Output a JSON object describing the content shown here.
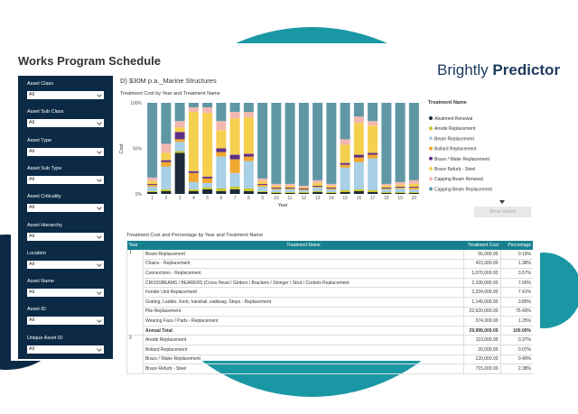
{
  "header": {
    "title": "Works Program Schedule",
    "logo_brand": "Brightly",
    "logo_product": "Predictor"
  },
  "filters": [
    {
      "label": "Asset Class",
      "value": "All"
    },
    {
      "label": "Asset Sub Class",
      "value": "All"
    },
    {
      "label": "Asset Type",
      "value": "All"
    },
    {
      "label": "Asset Sub Type",
      "value": "All"
    },
    {
      "label": "Asset Criticality",
      "value": "All"
    },
    {
      "label": "Asset Hierarchy",
      "value": "All"
    },
    {
      "label": "Location",
      "value": "All"
    },
    {
      "label": "Asset Name",
      "value": "All"
    },
    {
      "label": "Asset ID",
      "value": "All"
    },
    {
      "label": "Unique Asset ID",
      "value": "All"
    }
  ],
  "report": {
    "heading": "D) $30M p.a._Marine Structures",
    "button": "Show Details"
  },
  "chart_data": {
    "type": "bar",
    "stacked": true,
    "title": "Treatment Cost by Year and Treatment Name",
    "x_label": "Year",
    "y_label": "Cost",
    "legend_title": "Treatment Name",
    "legend": "right",
    "grid": false,
    "categories": [
      "1",
      "2",
      "3",
      "4",
      "5",
      "6",
      "7",
      "8",
      "9",
      "10",
      "11",
      "12",
      "13",
      "14",
      "15",
      "16",
      "17",
      "18",
      "19",
      "20"
    ],
    "ylim": [
      0,
      100
    ],
    "yticks": [
      {
        "value": 0,
        "label": "0%"
      },
      {
        "value": 50,
        "label": "50%"
      },
      {
        "value": 100,
        "label": "100%"
      }
    ],
    "series": [
      {
        "name": "Abutment Renewal",
        "color": "#1c2b39",
        "values": [
          2,
          3,
          45,
          3,
          5,
          3,
          5,
          3,
          2,
          1,
          1,
          1,
          2,
          1,
          2,
          3,
          2,
          1,
          1,
          1
        ]
      },
      {
        "name": "Anode Replacement",
        "color": "#c9c52a",
        "values": [
          1,
          2,
          2,
          2,
          2,
          3,
          3,
          3,
          1,
          1,
          1,
          1,
          1,
          1,
          2,
          2,
          2,
          1,
          1,
          1
        ]
      },
      {
        "name": "Beam Replacement",
        "color": "#a8d0e6",
        "values": [
          5,
          25,
          10,
          8,
          5,
          35,
          15,
          30,
          5,
          3,
          3,
          2,
          4,
          3,
          25,
          30,
          35,
          3,
          4,
          3
        ]
      },
      {
        "name": "Bollard Replacement",
        "color": "#f0a830",
        "values": [
          2,
          5,
          3,
          10,
          5,
          5,
          15,
          5,
          2,
          1,
          1,
          1,
          1,
          1,
          3,
          5,
          4,
          1,
          1,
          2
        ]
      },
      {
        "name": "Brace / Waler Replacement",
        "color": "#5e2f86",
        "values": [
          1,
          2,
          8,
          2,
          2,
          4,
          5,
          3,
          1,
          1,
          1,
          1,
          1,
          1,
          2,
          3,
          2,
          1,
          1,
          1
        ]
      },
      {
        "name": "Brace Refurb - Steel",
        "color": "#f5d04f",
        "values": [
          3,
          8,
          5,
          65,
          70,
          20,
          40,
          40,
          3,
          2,
          2,
          1,
          3,
          2,
          20,
          35,
          30,
          2,
          2,
          3
        ]
      },
      {
        "name": "Capping Beam Renewal",
        "color": "#f2b8b0",
        "values": [
          4,
          10,
          7,
          5,
          6,
          10,
          7,
          6,
          3,
          2,
          2,
          2,
          3,
          2,
          6,
          7,
          5,
          2,
          3,
          4
        ]
      },
      {
        "name": "Capping Beam Replacement",
        "color": "#5f97a5",
        "values": [
          82,
          45,
          20,
          5,
          5,
          20,
          10,
          10,
          83,
          89,
          89,
          91,
          85,
          89,
          40,
          15,
          20,
          89,
          87,
          85
        ]
      }
    ]
  },
  "table": {
    "title": "Treatment Cost and Percentage by Year and Treatment Name",
    "columns": [
      "Year",
      "Treatment Name",
      "Treatment Cost",
      "Percentage"
    ],
    "groups": [
      {
        "year": "1",
        "rows": [
          [
            "Beam Replacement",
            "56,000.00",
            "0.19%"
          ],
          [
            "Chains - Replacement",
            "415,000.00",
            "1.38%"
          ],
          [
            "Connections - Replacement",
            "1,070,000.00",
            "3.57%"
          ],
          [
            "CROSSBEAMS / BEARERS (Cross Head / Girders / Brackets / Stringer / Strut / Corbels Replacement",
            "2,100,000.00",
            "7.00%"
          ],
          [
            "Fender Unit Replacement",
            "2,224,000.00",
            "7.41%"
          ],
          [
            "Grating, Ladder, Kerb, handrail, walkway, Steps - Replacement",
            "1,140,000.00",
            "3.80%"
          ],
          [
            "Pile Replacement",
            "22,620,000.00",
            "75.40%"
          ],
          [
            "Wearing Face / Pads - Replacement",
            "374,000.00",
            "1.25%"
          ]
        ],
        "total": [
          "Annual Total",
          "29,999,000.00",
          "100.00%"
        ]
      },
      {
        "year": "2",
        "rows": [
          [
            "Anode Replacement",
            "110,000.00",
            "0.37%"
          ],
          [
            "Bollard Replacement",
            "20,000.00",
            "0.07%"
          ],
          [
            "Brace / Waler Replacement",
            "120,000.00",
            "0.40%"
          ],
          [
            "Brace Refurb - Steel",
            "715,000.00",
            "2.38%"
          ]
        ]
      }
    ]
  }
}
